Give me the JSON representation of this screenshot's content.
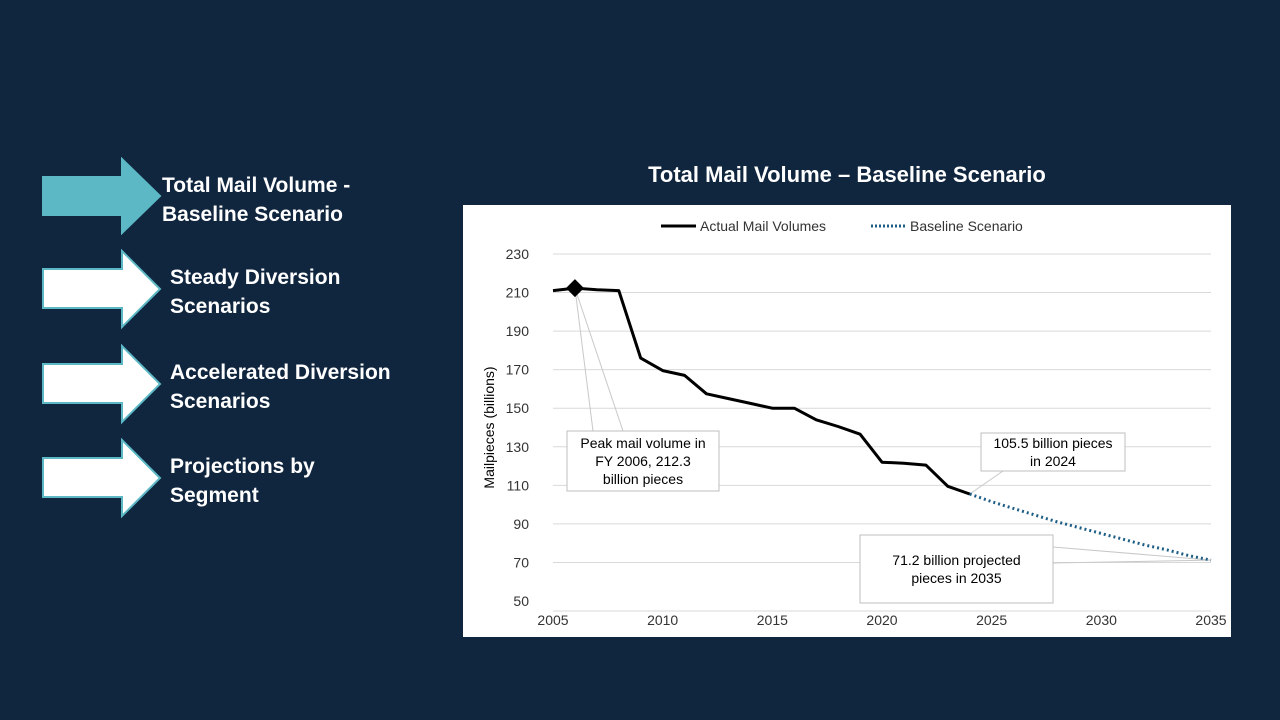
{
  "nav": {
    "items": [
      {
        "label": "Total Mail Volume -\nBaseline Scenario",
        "active": true
      },
      {
        "label": "Steady Diversion\nScenarios",
        "active": false
      },
      {
        "label": "Accelerated Diversion\nScenarios",
        "active": false
      },
      {
        "label": "Projections by\nSegment",
        "active": false
      }
    ]
  },
  "colors": {
    "background": "#10263f",
    "active_arrow": "#5bb8c4",
    "actual_line": "#000000",
    "baseline_line": "#1f5f86"
  },
  "chart_data": {
    "type": "line",
    "title": "Total Mail Volume – Baseline Scenario",
    "xlabel": "",
    "ylabel": "Mailpieces (billions)",
    "xlim": [
      2005,
      2035
    ],
    "ylim": [
      50,
      230
    ],
    "x_ticks": [
      2005,
      2010,
      2015,
      2020,
      2025,
      2030,
      2035
    ],
    "y_ticks": [
      50,
      70,
      90,
      110,
      130,
      150,
      170,
      190,
      210,
      230
    ],
    "grid": true,
    "legend_position": "top",
    "series": [
      {
        "name": "Actual Mail Volumes",
        "style": "solid",
        "x": [
          2005,
          2006,
          2007,
          2008,
          2009,
          2010,
          2011,
          2012,
          2013,
          2014,
          2015,
          2016,
          2017,
          2018,
          2019,
          2020,
          2021,
          2022,
          2023,
          2024
        ],
        "y": [
          211.0,
          212.3,
          211.5,
          211.0,
          176.0,
          169.5,
          167.0,
          157.5,
          155.0,
          152.5,
          150.0,
          150.0,
          144.0,
          140.5,
          136.5,
          122.0,
          121.5,
          120.5,
          109.5,
          105.5
        ]
      },
      {
        "name": "Baseline Scenario",
        "style": "dotted",
        "x": [
          2024,
          2025,
          2026,
          2027,
          2028,
          2029,
          2030,
          2031,
          2032,
          2033,
          2034,
          2035
        ],
        "y": [
          105.5,
          101.5,
          98.0,
          94.5,
          91.0,
          88.0,
          85.0,
          82.0,
          79.0,
          76.5,
          73.5,
          71.2
        ]
      }
    ],
    "peak_marker": {
      "x": 2006,
      "y": 212.3
    },
    "annotations": [
      {
        "text": "Peak mail volume in FY 2006, 212.3 billion pieces",
        "lines": [
          "Peak mail volume in",
          "FY 2006, 212.3",
          "billion pieces"
        ],
        "x": 2006,
        "y": 212.3
      },
      {
        "text": "105.5 billion pieces in 2024",
        "lines": [
          "105.5 billion pieces",
          "in 2024"
        ],
        "x": 2024,
        "y": 105.5
      },
      {
        "text": "71.2 billion projected pieces in 2035",
        "lines": [
          "71.2 billion projected",
          "pieces in 2035"
        ],
        "x": 2035,
        "y": 71.2
      }
    ]
  }
}
